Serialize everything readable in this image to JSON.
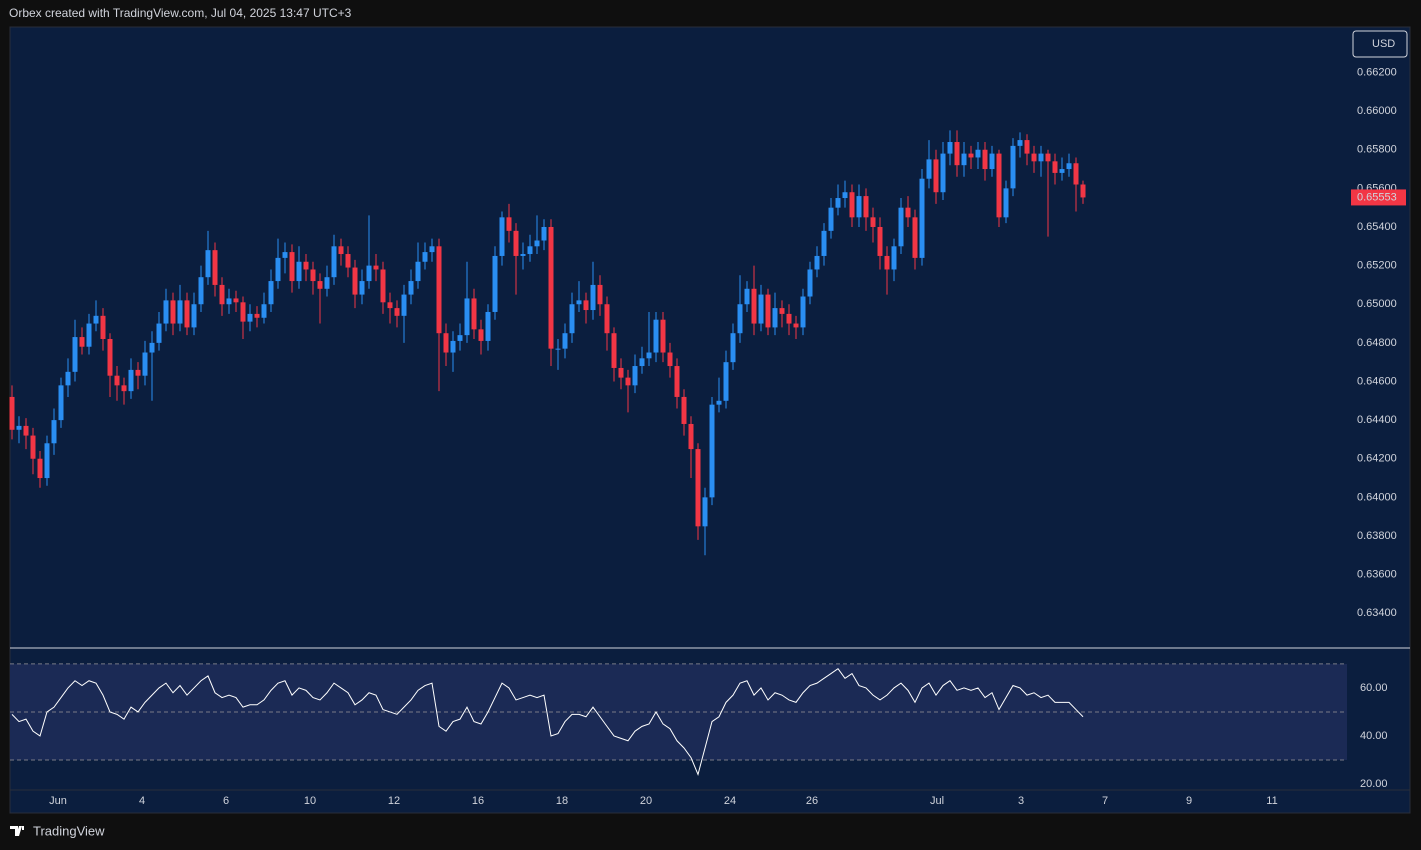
{
  "header": {
    "text": "Orbex created with TradingView.com, Jul 04, 2025 13:47 UTC+3"
  },
  "footer": {
    "brand": "TradingView"
  },
  "chart_data": [
    {
      "type": "candlestick",
      "currency": "USD",
      "up_color": "#2a8ef2",
      "down_color": "#f23645",
      "ylim": [
        0.6322,
        0.6642
      ],
      "yticks": [
        {
          "value": 0.634,
          "label": "0.63400"
        },
        {
          "value": 0.636,
          "label": "0.63600"
        },
        {
          "value": 0.638,
          "label": "0.63800"
        },
        {
          "value": 0.64,
          "label": "0.64000"
        },
        {
          "value": 0.642,
          "label": "0.64200"
        },
        {
          "value": 0.644,
          "label": "0.64400"
        },
        {
          "value": 0.646,
          "label": "0.64600"
        },
        {
          "value": 0.648,
          "label": "0.64800"
        },
        {
          "value": 0.65,
          "label": "0.65000"
        },
        {
          "value": 0.652,
          "label": "0.65200"
        },
        {
          "value": 0.654,
          "label": "0.65400"
        },
        {
          "value": 0.656,
          "label": "0.65600"
        },
        {
          "value": 0.658,
          "label": "0.65800"
        },
        {
          "value": 0.66,
          "label": "0.66000"
        },
        {
          "value": 0.662,
          "label": "0.66200"
        }
      ],
      "x_labels": [
        "Jun",
        "4",
        "6",
        "10",
        "12",
        "16",
        "18",
        "20",
        "24",
        "26",
        "Jul",
        "3",
        "7",
        "9",
        "11"
      ],
      "ohlc": [
        [
          0.6452,
          0.6458,
          0.643,
          0.6435
        ],
        [
          0.6435,
          0.6442,
          0.6428,
          0.6437
        ],
        [
          0.6437,
          0.6441,
          0.6425,
          0.6432
        ],
        [
          0.6432,
          0.6436,
          0.6412,
          0.642
        ],
        [
          0.642,
          0.6424,
          0.6405,
          0.641
        ],
        [
          0.641,
          0.6432,
          0.6406,
          0.6428
        ],
        [
          0.6428,
          0.6446,
          0.6422,
          0.644
        ],
        [
          0.644,
          0.6462,
          0.6436,
          0.6458
        ],
        [
          0.6458,
          0.6472,
          0.6452,
          0.6465
        ],
        [
          0.6465,
          0.6492,
          0.646,
          0.6483
        ],
        [
          0.6483,
          0.6488,
          0.6474,
          0.6478
        ],
        [
          0.6478,
          0.6495,
          0.6474,
          0.649
        ],
        [
          0.649,
          0.6502,
          0.6486,
          0.6494
        ],
        [
          0.6494,
          0.6498,
          0.6476,
          0.6482
        ],
        [
          0.6482,
          0.6485,
          0.6452,
          0.6463
        ],
        [
          0.6463,
          0.6468,
          0.645,
          0.6458
        ],
        [
          0.6458,
          0.6462,
          0.6448,
          0.6455
        ],
        [
          0.6455,
          0.6472,
          0.6451,
          0.6466
        ],
        [
          0.6466,
          0.647,
          0.6456,
          0.6463
        ],
        [
          0.6463,
          0.6481,
          0.6458,
          0.6475
        ],
        [
          0.6475,
          0.6486,
          0.645,
          0.648
        ],
        [
          0.648,
          0.6496,
          0.6476,
          0.649
        ],
        [
          0.649,
          0.6508,
          0.6486,
          0.6502
        ],
        [
          0.6502,
          0.6506,
          0.6484,
          0.649
        ],
        [
          0.649,
          0.651,
          0.6486,
          0.6502
        ],
        [
          0.6502,
          0.6506,
          0.6484,
          0.6488
        ],
        [
          0.6488,
          0.6506,
          0.6484,
          0.65
        ],
        [
          0.65,
          0.652,
          0.6496,
          0.6514
        ],
        [
          0.6514,
          0.6538,
          0.651,
          0.6528
        ],
        [
          0.6528,
          0.6532,
          0.6504,
          0.651
        ],
        [
          0.651,
          0.6514,
          0.6494,
          0.65
        ],
        [
          0.65,
          0.6508,
          0.6495,
          0.6503
        ],
        [
          0.6503,
          0.6507,
          0.6496,
          0.6501
        ],
        [
          0.6501,
          0.6504,
          0.6482,
          0.6491
        ],
        [
          0.6491,
          0.65,
          0.6486,
          0.6495
        ],
        [
          0.6495,
          0.6499,
          0.6488,
          0.6493
        ],
        [
          0.6493,
          0.6506,
          0.649,
          0.65
        ],
        [
          0.65,
          0.6518,
          0.6496,
          0.6512
        ],
        [
          0.6512,
          0.6534,
          0.6508,
          0.6524
        ],
        [
          0.6524,
          0.6532,
          0.6516,
          0.6527
        ],
        [
          0.6527,
          0.6531,
          0.6506,
          0.6512
        ],
        [
          0.6512,
          0.653,
          0.6508,
          0.6522
        ],
        [
          0.6522,
          0.6526,
          0.6512,
          0.6518
        ],
        [
          0.6518,
          0.6522,
          0.6505,
          0.6512
        ],
        [
          0.6512,
          0.6516,
          0.649,
          0.6508
        ],
        [
          0.6508,
          0.652,
          0.6504,
          0.6514
        ],
        [
          0.6514,
          0.6536,
          0.651,
          0.653
        ],
        [
          0.653,
          0.6534,
          0.652,
          0.6526
        ],
        [
          0.6526,
          0.653,
          0.6514,
          0.6519
        ],
        [
          0.6519,
          0.6523,
          0.6498,
          0.6505
        ],
        [
          0.6505,
          0.6518,
          0.65,
          0.6512
        ],
        [
          0.6512,
          0.6546,
          0.6508,
          0.652
        ],
        [
          0.652,
          0.6526,
          0.6512,
          0.6518
        ],
        [
          0.6518,
          0.6522,
          0.6495,
          0.6501
        ],
        [
          0.6501,
          0.6506,
          0.649,
          0.6498
        ],
        [
          0.6498,
          0.6502,
          0.6488,
          0.6494
        ],
        [
          0.6494,
          0.651,
          0.648,
          0.6505
        ],
        [
          0.6505,
          0.6518,
          0.65,
          0.6512
        ],
        [
          0.6512,
          0.6532,
          0.6508,
          0.6522
        ],
        [
          0.6522,
          0.6532,
          0.6518,
          0.6527
        ],
        [
          0.6527,
          0.6534,
          0.6522,
          0.653
        ],
        [
          0.653,
          0.6534,
          0.6455,
          0.6485
        ],
        [
          0.6485,
          0.649,
          0.6468,
          0.6475
        ],
        [
          0.6475,
          0.6486,
          0.6465,
          0.6481
        ],
        [
          0.6481,
          0.649,
          0.6476,
          0.6484
        ],
        [
          0.6484,
          0.6522,
          0.648,
          0.6503
        ],
        [
          0.6503,
          0.6508,
          0.6482,
          0.6487
        ],
        [
          0.6487,
          0.6492,
          0.6474,
          0.6481
        ],
        [
          0.6481,
          0.65,
          0.6476,
          0.6496
        ],
        [
          0.6496,
          0.653,
          0.6492,
          0.6525
        ],
        [
          0.6525,
          0.6548,
          0.652,
          0.6545
        ],
        [
          0.6545,
          0.6552,
          0.6532,
          0.6538
        ],
        [
          0.6538,
          0.6542,
          0.6505,
          0.6525
        ],
        [
          0.6525,
          0.6532,
          0.6518,
          0.6526
        ],
        [
          0.6526,
          0.6536,
          0.6522,
          0.653
        ],
        [
          0.653,
          0.6546,
          0.6526,
          0.6533
        ],
        [
          0.6533,
          0.6544,
          0.6528,
          0.654
        ],
        [
          0.654,
          0.6544,
          0.6468,
          0.6477
        ],
        [
          0.6477,
          0.6482,
          0.6466,
          0.6477
        ],
        [
          0.6477,
          0.649,
          0.6472,
          0.6485
        ],
        [
          0.6485,
          0.6506,
          0.648,
          0.65
        ],
        [
          0.65,
          0.6512,
          0.6496,
          0.6502
        ],
        [
          0.6502,
          0.6506,
          0.649,
          0.6497
        ],
        [
          0.6497,
          0.6522,
          0.6492,
          0.651
        ],
        [
          0.651,
          0.6515,
          0.6494,
          0.65
        ],
        [
          0.65,
          0.6504,
          0.6476,
          0.6485
        ],
        [
          0.6485,
          0.6488,
          0.646,
          0.6467
        ],
        [
          0.6467,
          0.6472,
          0.6456,
          0.6462
        ],
        [
          0.6462,
          0.6466,
          0.6444,
          0.6458
        ],
        [
          0.6458,
          0.6474,
          0.6454,
          0.6468
        ],
        [
          0.6468,
          0.6478,
          0.6464,
          0.6472
        ],
        [
          0.6472,
          0.6496,
          0.6468,
          0.6475
        ],
        [
          0.6475,
          0.6496,
          0.647,
          0.6492
        ],
        [
          0.6492,
          0.6496,
          0.647,
          0.6475
        ],
        [
          0.6475,
          0.648,
          0.6462,
          0.6468
        ],
        [
          0.6468,
          0.6472,
          0.6446,
          0.6452
        ],
        [
          0.6452,
          0.6456,
          0.6432,
          0.6438
        ],
        [
          0.6438,
          0.6442,
          0.641,
          0.6425
        ],
        [
          0.6425,
          0.6428,
          0.6378,
          0.6385
        ],
        [
          0.6385,
          0.6405,
          0.637,
          0.64
        ],
        [
          0.64,
          0.6452,
          0.6396,
          0.6448
        ],
        [
          0.6448,
          0.6462,
          0.6444,
          0.645
        ],
        [
          0.645,
          0.6476,
          0.6446,
          0.647
        ],
        [
          0.647,
          0.649,
          0.6466,
          0.6485
        ],
        [
          0.6485,
          0.6515,
          0.648,
          0.65
        ],
        [
          0.65,
          0.6512,
          0.6496,
          0.6508
        ],
        [
          0.6508,
          0.652,
          0.6484,
          0.649
        ],
        [
          0.649,
          0.651,
          0.6486,
          0.6505
        ],
        [
          0.6505,
          0.6508,
          0.6484,
          0.6488
        ],
        [
          0.6488,
          0.6506,
          0.6484,
          0.6498
        ],
        [
          0.6498,
          0.6502,
          0.6488,
          0.6495
        ],
        [
          0.6495,
          0.65,
          0.6484,
          0.649
        ],
        [
          0.649,
          0.6494,
          0.6482,
          0.6488
        ],
        [
          0.6488,
          0.6508,
          0.6484,
          0.6504
        ],
        [
          0.6504,
          0.6522,
          0.65,
          0.6518
        ],
        [
          0.6518,
          0.653,
          0.6514,
          0.6525
        ],
        [
          0.6525,
          0.6542,
          0.652,
          0.6538
        ],
        [
          0.6538,
          0.6555,
          0.6534,
          0.655
        ],
        [
          0.655,
          0.6562,
          0.6546,
          0.6555
        ],
        [
          0.6555,
          0.6564,
          0.655,
          0.6558
        ],
        [
          0.6558,
          0.6562,
          0.654,
          0.6545
        ],
        [
          0.6545,
          0.6562,
          0.654,
          0.6556
        ],
        [
          0.6556,
          0.656,
          0.6538,
          0.6545
        ],
        [
          0.6545,
          0.655,
          0.6532,
          0.654
        ],
        [
          0.654,
          0.6545,
          0.6518,
          0.6525
        ],
        [
          0.6525,
          0.653,
          0.6505,
          0.6518
        ],
        [
          0.6518,
          0.6534,
          0.6512,
          0.653
        ],
        [
          0.653,
          0.6555,
          0.6526,
          0.655
        ],
        [
          0.655,
          0.6556,
          0.654,
          0.6545
        ],
        [
          0.6545,
          0.6549,
          0.6518,
          0.6524
        ],
        [
          0.6524,
          0.657,
          0.652,
          0.6565
        ],
        [
          0.6565,
          0.6585,
          0.656,
          0.6575
        ],
        [
          0.6575,
          0.658,
          0.6552,
          0.6558
        ],
        [
          0.6558,
          0.6584,
          0.6554,
          0.6578
        ],
        [
          0.6578,
          0.659,
          0.6572,
          0.6584
        ],
        [
          0.6584,
          0.659,
          0.6566,
          0.6572
        ],
        [
          0.6572,
          0.6584,
          0.6566,
          0.6578
        ],
        [
          0.6578,
          0.6582,
          0.657,
          0.6576
        ],
        [
          0.6576,
          0.6584,
          0.657,
          0.658
        ],
        [
          0.658,
          0.6584,
          0.6564,
          0.657
        ],
        [
          0.657,
          0.6582,
          0.6566,
          0.6578
        ],
        [
          0.6578,
          0.658,
          0.654,
          0.6545
        ],
        [
          0.6545,
          0.6564,
          0.6542,
          0.656
        ],
        [
          0.656,
          0.6586,
          0.6556,
          0.6582
        ],
        [
          0.6582,
          0.6589,
          0.6576,
          0.6585
        ],
        [
          0.6585,
          0.6588,
          0.6572,
          0.6578
        ],
        [
          0.6578,
          0.6582,
          0.6568,
          0.6574
        ],
        [
          0.6574,
          0.6582,
          0.6566,
          0.6578
        ],
        [
          0.6578,
          0.658,
          0.6535,
          0.6574
        ],
        [
          0.6574,
          0.6578,
          0.6562,
          0.6568
        ],
        [
          0.6568,
          0.6576,
          0.6564,
          0.657
        ],
        [
          0.657,
          0.6578,
          0.6566,
          0.6573
        ],
        [
          0.6573,
          0.6576,
          0.6548,
          0.6562
        ],
        [
          0.6562,
          0.6564,
          0.6552,
          0.65553
        ]
      ]
    },
    {
      "type": "line",
      "color": "#ffffff",
      "band_color": "#1b2a55",
      "levels": [
        70,
        50,
        30
      ],
      "ylim": [
        17.5,
        75.8
      ],
      "yticks": [
        {
          "value": 20,
          "label": "20.00"
        },
        {
          "value": 40,
          "label": "40.00"
        },
        {
          "value": 60,
          "label": "60.00"
        }
      ],
      "values": [
        49,
        46,
        47,
        42,
        40,
        50,
        52,
        56,
        60,
        63,
        61,
        63,
        62,
        57,
        50,
        49,
        47,
        52,
        50,
        54,
        57,
        60,
        62,
        58,
        61,
        57,
        60,
        63,
        65,
        58,
        56,
        57,
        56,
        52,
        53,
        53,
        55,
        59,
        62,
        63,
        57,
        60,
        59,
        56,
        55,
        58,
        62,
        60,
        58,
        53,
        55,
        58,
        57,
        51,
        50,
        49,
        52,
        55,
        59,
        61,
        62,
        44,
        42,
        46,
        47,
        52,
        46,
        45,
        50,
        56,
        62,
        60,
        55,
        56,
        57,
        56,
        57,
        40,
        41,
        46,
        49,
        49,
        48,
        52,
        48,
        44,
        40,
        39,
        38,
        42,
        44,
        45,
        50,
        45,
        43,
        38,
        35,
        31,
        24,
        35,
        46,
        48,
        54,
        57,
        62,
        63,
        57,
        60,
        55,
        58,
        57,
        55,
        54,
        58,
        61,
        62,
        64,
        66,
        68,
        64,
        66,
        61,
        60,
        57,
        55,
        57,
        60,
        62,
        59,
        54,
        60,
        62,
        57,
        61,
        63,
        59,
        60,
        59,
        60,
        56,
        58,
        51,
        56,
        61,
        60,
        57,
        58,
        56,
        57,
        54,
        54,
        54,
        51,
        48
      ]
    }
  ]
}
